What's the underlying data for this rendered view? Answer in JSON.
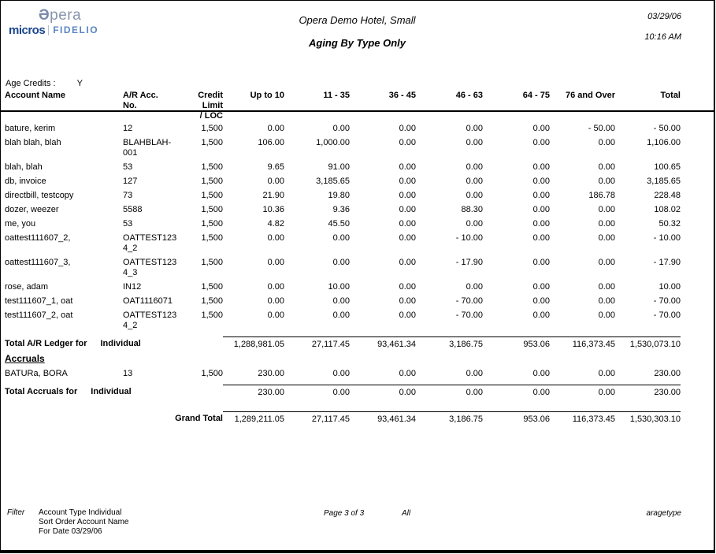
{
  "logo": {
    "opera_glyph": "Ə",
    "opera_rest": "pera",
    "micros": "micros",
    "fidelio": "FIDELIO"
  },
  "header": {
    "hotel_name": "Opera Demo Hotel, Small",
    "report_title": "Aging By Type Only",
    "date": "03/29/06",
    "time": "10:16 AM"
  },
  "age_credits": {
    "label": "Age Credits :",
    "value": "Y"
  },
  "table": {
    "columns": [
      "Account Name",
      "A/R Acc.\nNo.",
      "Credit Limit\n/ LOC",
      "Up to 10",
      "11 - 35",
      "36 - 45",
      "46 - 63",
      "64 - 75",
      "76 and Over",
      "Total"
    ],
    "rows": [
      {
        "name": "bature, kerim",
        "acc_no": "12",
        "credit_limit": "1,500",
        "values": [
          "0.00",
          "0.00",
          "0.00",
          "0.00",
          "0.00",
          "- 50.00",
          "- 50.00"
        ]
      },
      {
        "name": "blah blah, blah",
        "acc_no": "BLAHBLAH-\n001",
        "credit_limit": "1,500",
        "values": [
          "106.00",
          "1,000.00",
          "0.00",
          "0.00",
          "0.00",
          "0.00",
          "1,106.00"
        ]
      },
      {
        "name": "blah, blah",
        "acc_no": "53",
        "credit_limit": "1,500",
        "values": [
          "9.65",
          "91.00",
          "0.00",
          "0.00",
          "0.00",
          "0.00",
          "100.65"
        ]
      },
      {
        "name": "db, invoice",
        "acc_no": "127",
        "credit_limit": "1,500",
        "values": [
          "0.00",
          "3,185.65",
          "0.00",
          "0.00",
          "0.00",
          "0.00",
          "3,185.65"
        ]
      },
      {
        "name": "directbill, testcopy",
        "acc_no": "73",
        "credit_limit": "1,500",
        "values": [
          "21.90",
          "19.80",
          "0.00",
          "0.00",
          "0.00",
          "186.78",
          "228.48"
        ]
      },
      {
        "name": "dozer, weezer",
        "acc_no": "5588",
        "credit_limit": "1,500",
        "values": [
          "10.36",
          "9.36",
          "0.00",
          "88.30",
          "0.00",
          "0.00",
          "108.02"
        ]
      },
      {
        "name": "me, you",
        "acc_no": "53",
        "credit_limit": "1,500",
        "values": [
          "4.82",
          "45.50",
          "0.00",
          "0.00",
          "0.00",
          "0.00",
          "50.32"
        ]
      },
      {
        "name": "oattest111607_2,",
        "acc_no": "OATTEST123\n4_2",
        "credit_limit": "1,500",
        "values": [
          "0.00",
          "0.00",
          "0.00",
          "- 10.00",
          "0.00",
          "0.00",
          "- 10.00"
        ]
      },
      {
        "name": "oattest111607_3,",
        "acc_no": "OATTEST123\n4_3",
        "credit_limit": "1,500",
        "values": [
          "0.00",
          "0.00",
          "0.00",
          "- 17.90",
          "0.00",
          "0.00",
          "- 17.90"
        ]
      },
      {
        "name": "rose, adam",
        "acc_no": "IN12",
        "credit_limit": "1,500",
        "values": [
          "0.00",
          "10.00",
          "0.00",
          "0.00",
          "0.00",
          "0.00",
          "10.00"
        ]
      },
      {
        "name": "test111607_1, oat",
        "acc_no": "OAT1116071",
        "credit_limit": "1,500",
        "values": [
          "0.00",
          "0.00",
          "0.00",
          "- 70.00",
          "0.00",
          "0.00",
          "- 70.00"
        ]
      },
      {
        "name": "test111607_2, oat",
        "acc_no": "OATTEST123\n4_2",
        "credit_limit": "1,500",
        "values": [
          "0.00",
          "0.00",
          "0.00",
          "- 70.00",
          "0.00",
          "0.00",
          "- 70.00"
        ]
      }
    ],
    "ar_total": {
      "label": "Total A/R Ledger  for",
      "type": "Individual",
      "values": [
        "1,288,981.05",
        "27,117.45",
        "93,461.34",
        "3,186.75",
        "953.06",
        "116,373.45",
        "1,530,073.10"
      ]
    },
    "accruals_heading": "Accruals",
    "accrual_rows": [
      {
        "name": "BATURa, BORA",
        "acc_no": "13",
        "credit_limit": "1,500",
        "values": [
          "230.00",
          "0.00",
          "0.00",
          "0.00",
          "0.00",
          "0.00",
          "230.00"
        ]
      }
    ],
    "accruals_total": {
      "label": "Total Accruals for",
      "type": "Individual",
      "values": [
        "230.00",
        "0.00",
        "0.00",
        "0.00",
        "0.00",
        "0.00",
        "230.00"
      ]
    },
    "grand_total": {
      "label": "Grand Total",
      "values": [
        "1,289,211.05",
        "27,117.45",
        "93,461.34",
        "3,186.75",
        "953.06",
        "116,373.45",
        "1,530,303.10"
      ]
    }
  },
  "footer": {
    "filter_label": "Filter",
    "filter_lines": [
      "Account Type Individual",
      "Sort Order Account Name",
      "For Date 03/29/06"
    ],
    "page_label": "Page 3 of 3",
    "scope": "All",
    "report_code": "aragetype"
  }
}
